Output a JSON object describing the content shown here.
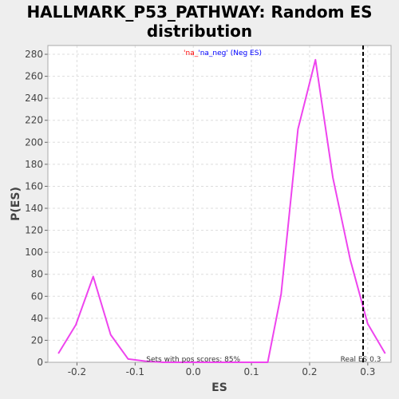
{
  "title_line1": "HALLMARK_P53_PATHWAY: Random ES",
  "title_line2": "distribution",
  "legend": {
    "part1": "'na_",
    "part2": "'na_neg' (Neg ES)",
    "part1_color": "#ff0000",
    "part2_color": "#0000ff"
  },
  "colors": {
    "series": "#ee44ee",
    "plot_bg": "#ffffff",
    "page_bg": "#eeeeee",
    "grid": "#dddddd"
  },
  "chart_data": {
    "type": "line",
    "xlabel": "ES",
    "ylabel": "P(ES)",
    "xlim": [
      -0.25,
      0.34
    ],
    "ylim": [
      0,
      288
    ],
    "xticks": [
      -0.2,
      -0.1,
      0.0,
      0.1,
      0.2,
      0.3
    ],
    "xtick_labels": [
      "-0.2",
      "-0.1",
      "0.0",
      "0.1",
      "0.2",
      "0.3"
    ],
    "yticks": [
      0,
      20,
      40,
      60,
      80,
      100,
      120,
      140,
      160,
      180,
      200,
      220,
      240,
      260,
      280
    ],
    "grid": true,
    "series": [
      {
        "x": [
          -0.232,
          -0.202,
          -0.172,
          -0.142,
          -0.112,
          -0.082,
          -0.052,
          -0.022,
          0.008,
          0.038,
          0.068,
          0.098,
          0.128,
          0.151,
          0.18,
          0.21,
          0.24,
          0.27,
          0.3,
          0.33
        ],
        "y": [
          8,
          34,
          78,
          25,
          3,
          1,
          0,
          0,
          0,
          0,
          0,
          0,
          0,
          62,
          212,
          275,
          168,
          93,
          35,
          8
        ]
      }
    ],
    "real_es": 0.292,
    "real_es_label": "Real ES 0.3",
    "annotation": "Sets with pos scores: 85%"
  }
}
